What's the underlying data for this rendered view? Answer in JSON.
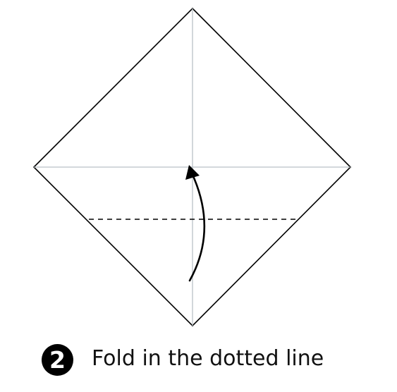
{
  "step": {
    "number": "2",
    "instruction": "Fold in the dotted line"
  },
  "colors": {
    "paper_edge": "#000000",
    "crease": "#b9c1c6",
    "fold_line": "#000000",
    "arrow": "#000000",
    "badge_background": "#000000",
    "badge_text": "#ffffff"
  }
}
